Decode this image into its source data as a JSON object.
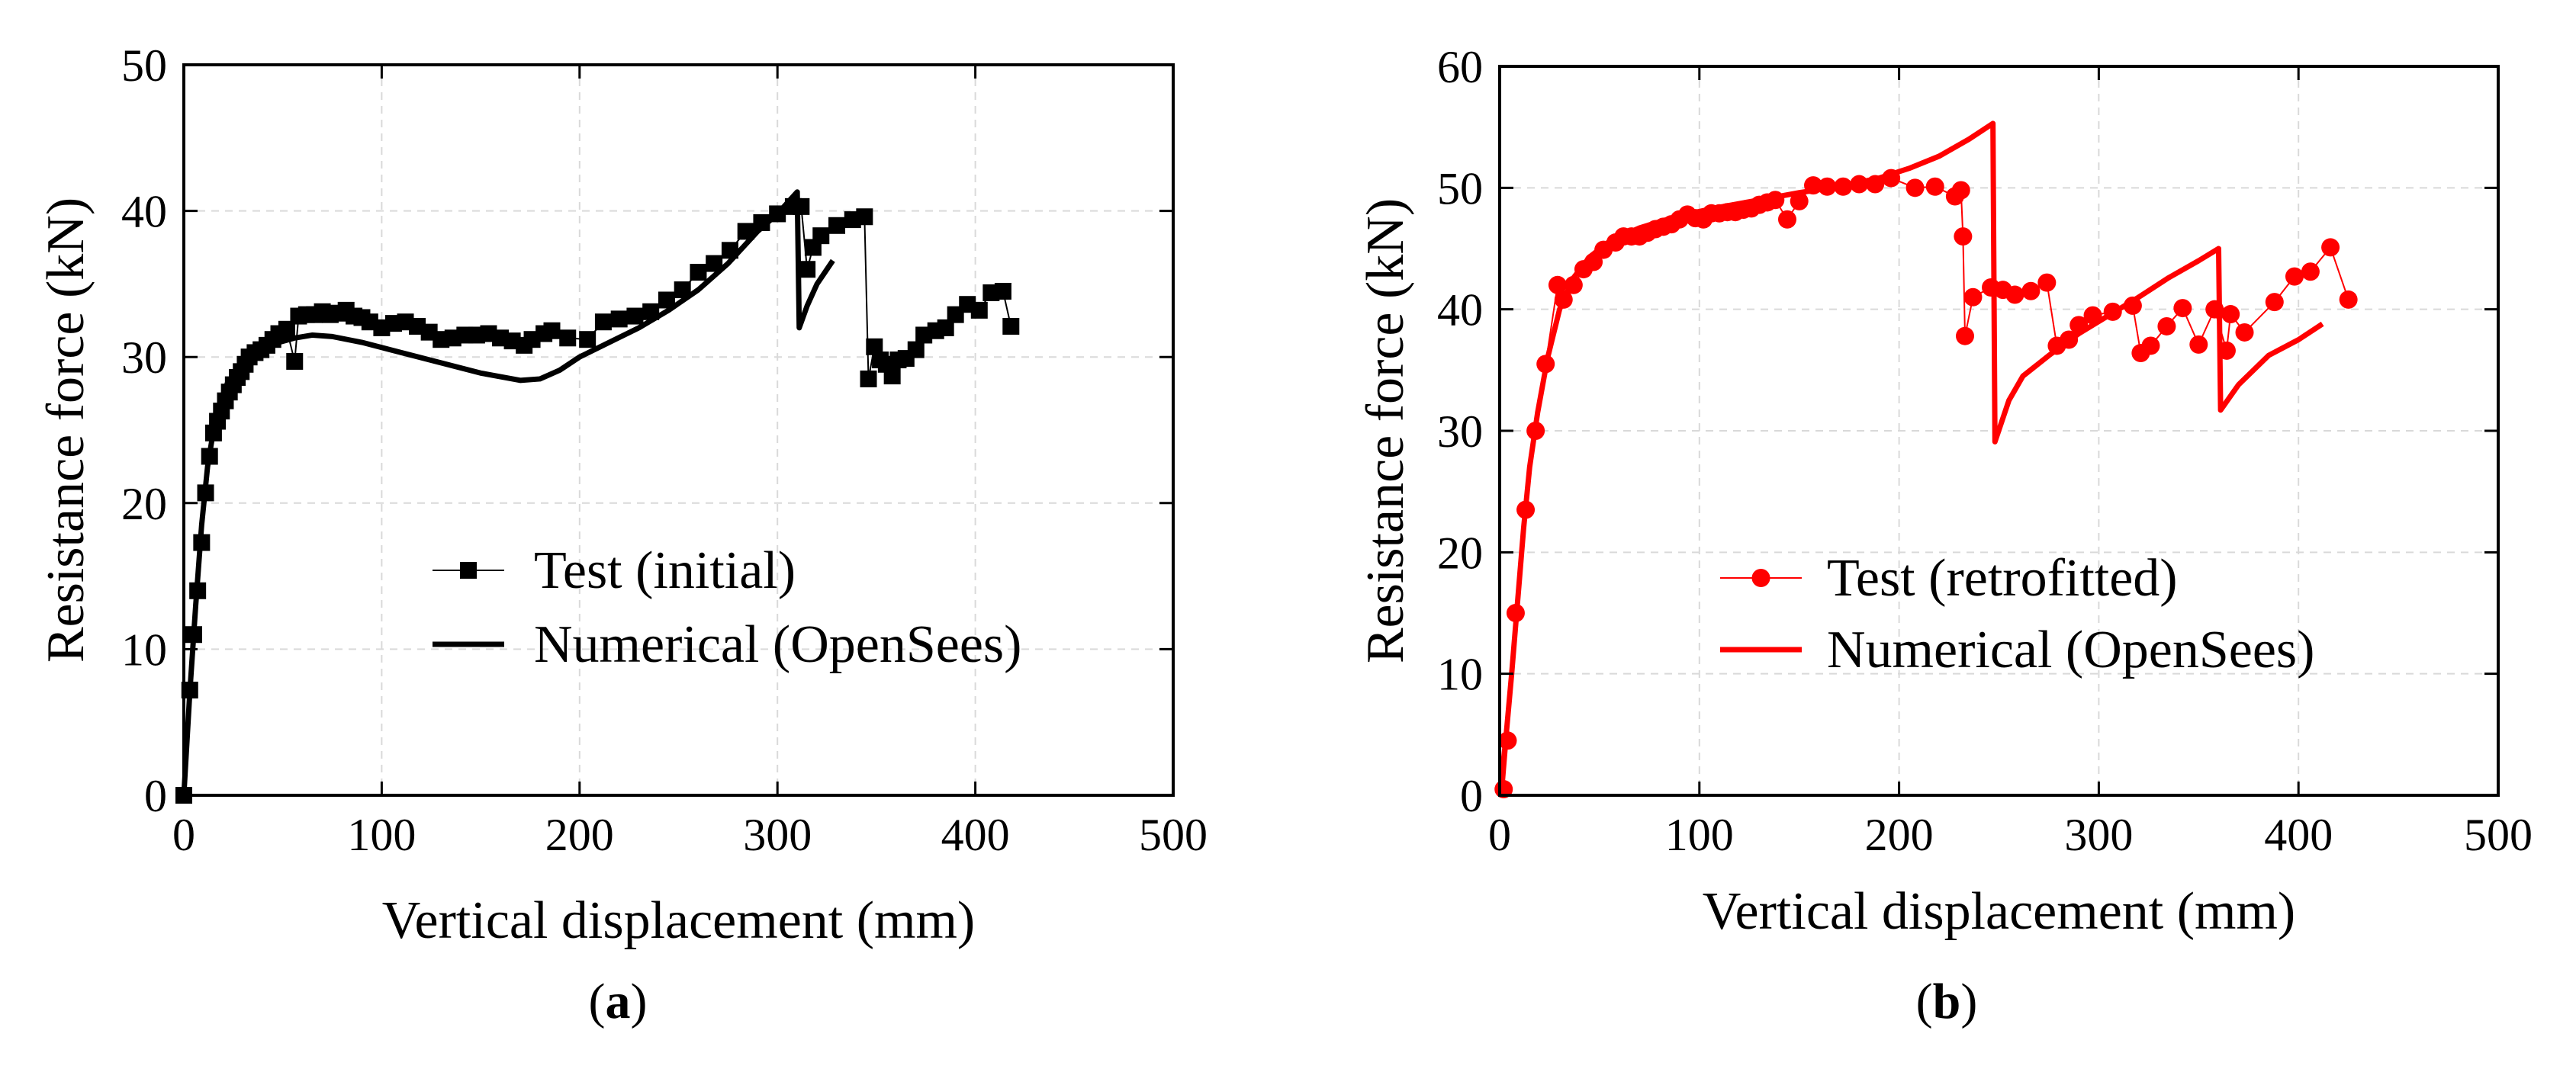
{
  "chart_data": [
    {
      "type": "line",
      "caption": {
        "open": "(",
        "letter": "a",
        "close": ")"
      },
      "xlabel": "Vertical displacement (mm)",
      "ylabel": "Resistance force (kN)",
      "xlim": [
        0,
        500
      ],
      "ylim": [
        0,
        50
      ],
      "xticks": [
        0,
        100,
        200,
        300,
        400,
        500
      ],
      "yticks": [
        0,
        10,
        20,
        30,
        40,
        50
      ],
      "grid": true,
      "legend_position": "center-right",
      "series": [
        {
          "name": "Test (initial)",
          "style": "line-markers",
          "marker": "square",
          "color": "#000000",
          "points": [
            [
              0,
              0
            ],
            [
              3,
              7.2
            ],
            [
              5,
              11
            ],
            [
              7,
              14
            ],
            [
              9,
              17.3
            ],
            [
              11,
              20.7
            ],
            [
              13,
              23.2
            ],
            [
              15,
              24.8
            ],
            [
              17,
              25.6
            ],
            [
              19,
              26.3
            ],
            [
              21,
              27
            ],
            [
              23,
              27.6
            ],
            [
              25,
              28.1
            ],
            [
              27,
              28.6
            ],
            [
              29,
              29
            ],
            [
              31,
              29.5
            ],
            [
              33,
              30
            ],
            [
              36,
              30.3
            ],
            [
              39,
              30.5
            ],
            [
              42,
              30.8
            ],
            [
              45,
              31.2
            ],
            [
              48,
              31.6
            ],
            [
              52,
              31.9
            ],
            [
              56,
              29.7
            ],
            [
              58,
              32.8
            ],
            [
              62,
              32.9
            ],
            [
              66,
              32.9
            ],
            [
              70,
              33.1
            ],
            [
              74,
              32.9
            ],
            [
              78,
              33
            ],
            [
              82,
              33.2
            ],
            [
              86,
              32.8
            ],
            [
              90,
              32.7
            ],
            [
              94,
              32.4
            ],
            [
              100,
              32
            ],
            [
              106,
              32.3
            ],
            [
              112,
              32.4
            ],
            [
              118,
              32.1
            ],
            [
              124,
              31.7
            ],
            [
              130,
              31.2
            ],
            [
              136,
              31.3
            ],
            [
              142,
              31.5
            ],
            [
              148,
              31.5
            ],
            [
              154,
              31.6
            ],
            [
              160,
              31.3
            ],
            [
              166,
              31.1
            ],
            [
              172,
              30.8
            ],
            [
              176,
              31.2
            ],
            [
              182,
              31.6
            ],
            [
              186,
              31.8
            ],
            [
              194,
              31.3
            ],
            [
              204,
              31.2
            ],
            [
              212,
              32.4
            ],
            [
              220,
              32.6
            ],
            [
              228,
              32.8
            ],
            [
              236,
              33.1
            ],
            [
              244,
              33.9
            ],
            [
              252,
              34.6
            ],
            [
              260,
              35.8
            ],
            [
              268,
              36.4
            ],
            [
              276,
              37.3
            ],
            [
              284,
              38.6
            ],
            [
              292,
              39.2
            ],
            [
              300,
              39.8
            ],
            [
              308,
              40.3
            ],
            [
              312,
              40.3
            ],
            [
              315,
              36
            ],
            [
              318,
              37.5
            ],
            [
              322,
              38.3
            ],
            [
              330,
              39
            ],
            [
              338,
              39.4
            ],
            [
              344,
              39.6
            ],
            [
              346,
              28.5
            ],
            [
              349,
              30.7
            ],
            [
              352,
              29.8
            ],
            [
              355,
              29.5
            ],
            [
              358,
              28.7
            ],
            [
              361,
              29.8
            ],
            [
              365,
              29.9
            ],
            [
              370,
              30.5
            ],
            [
              374,
              31.5
            ],
            [
              380,
              31.8
            ],
            [
              385,
              32
            ],
            [
              390,
              32.9
            ],
            [
              396,
              33.6
            ],
            [
              402,
              33.2
            ],
            [
              408,
              34.4
            ],
            [
              414,
              34.5
            ],
            [
              418,
              32.1
            ]
          ]
        },
        {
          "name": "Numerical (OpenSees)",
          "style": "line",
          "color": "#000000",
          "points": [
            [
              0,
              0
            ],
            [
              3,
              7
            ],
            [
              6,
              13
            ],
            [
              9,
              18.5
            ],
            [
              12,
              22.5
            ],
            [
              15,
              25
            ],
            [
              18,
              26.8
            ],
            [
              22,
              28.2
            ],
            [
              27,
              29.2
            ],
            [
              33,
              29.9
            ],
            [
              40,
              30.5
            ],
            [
              48,
              31
            ],
            [
              56,
              31.3
            ],
            [
              65,
              31.5
            ],
            [
              75,
              31.4
            ],
            [
              90,
              31
            ],
            [
              110,
              30.3
            ],
            [
              130,
              29.6
            ],
            [
              150,
              28.9
            ],
            [
              170,
              28.4
            ],
            [
              180,
              28.5
            ],
            [
              190,
              29.1
            ],
            [
              200,
              30
            ],
            [
              215,
              31
            ],
            [
              230,
              32
            ],
            [
              245,
              33.2
            ],
            [
              260,
              34.6
            ],
            [
              275,
              36.4
            ],
            [
              290,
              38.6
            ],
            [
              300,
              39.8
            ],
            [
              310,
              41.3
            ],
            [
              311,
              32
            ],
            [
              315,
              33.5
            ],
            [
              320,
              35
            ],
            [
              325,
              36
            ],
            [
              328,
              36.6
            ]
          ]
        }
      ]
    },
    {
      "type": "line",
      "caption": {
        "open": "(",
        "letter": "b",
        "close": ")"
      },
      "xlabel": "Vertical displacement (mm)",
      "ylabel": "Resistance force (kN)",
      "xlim": [
        0,
        500
      ],
      "ylim": [
        0,
        60
      ],
      "xticks": [
        0,
        100,
        200,
        300,
        400,
        500
      ],
      "yticks": [
        0,
        10,
        20,
        30,
        40,
        50,
        60
      ],
      "grid": true,
      "legend_position": "center-right",
      "series": [
        {
          "name": "Test (retrofitted)",
          "style": "line-markers",
          "marker": "circle",
          "color": "#ff0000",
          "points": [
            [
              2,
              0.5
            ],
            [
              4,
              4.5
            ],
            [
              8,
              15
            ],
            [
              13,
              23.5
            ],
            [
              18,
              30
            ],
            [
              23,
              35.5
            ],
            [
              29,
              42
            ],
            [
              32,
              40.8
            ],
            [
              37,
              42
            ],
            [
              42,
              43.3
            ],
            [
              47,
              43.9
            ],
            [
              52,
              44.9
            ],
            [
              58,
              45.5
            ],
            [
              62,
              46
            ],
            [
              66,
              46
            ],
            [
              70,
              46
            ],
            [
              74,
              46.3
            ],
            [
              78,
              46.6
            ],
            [
              82,
              46.8
            ],
            [
              86,
              47
            ],
            [
              90,
              47.4
            ],
            [
              94,
              47.8
            ],
            [
              98,
              47.5
            ],
            [
              102,
              47.4
            ],
            [
              106,
              47.9
            ],
            [
              110,
              47.9
            ],
            [
              114,
              48
            ],
            [
              118,
              48
            ],
            [
              122,
              48.2
            ],
            [
              126,
              48.3
            ],
            [
              130,
              48.6
            ],
            [
              134,
              48.8
            ],
            [
              138,
              49
            ],
            [
              144,
              47.4
            ],
            [
              150,
              48.9
            ],
            [
              157,
              50.2
            ],
            [
              164,
              50.1
            ],
            [
              172,
              50.1
            ],
            [
              180,
              50.3
            ],
            [
              188,
              50.3
            ],
            [
              196,
              50.8
            ],
            [
              208,
              50
            ],
            [
              218,
              50.1
            ],
            [
              228,
              49.3
            ],
            [
              231,
              49.8
            ],
            [
              232,
              46
            ],
            [
              233,
              37.8
            ],
            [
              237,
              41
            ],
            [
              246,
              41.8
            ],
            [
              252,
              41.6
            ],
            [
              258,
              41.2
            ],
            [
              266,
              41.5
            ],
            [
              274,
              42.2
            ],
            [
              279,
              37
            ],
            [
              285,
              37.5
            ],
            [
              290,
              38.7
            ],
            [
              297,
              39.5
            ],
            [
              307,
              39.8
            ],
            [
              317,
              40.3
            ],
            [
              321,
              36.4
            ],
            [
              326,
              37
            ],
            [
              334,
              38.6
            ],
            [
              342,
              40.1
            ],
            [
              350,
              37.1
            ],
            [
              358,
              40
            ],
            [
              364,
              36.6
            ],
            [
              366,
              39.6
            ],
            [
              373,
              38.1
            ],
            [
              388,
              40.6
            ],
            [
              398,
              42.7
            ],
            [
              406,
              43.1
            ],
            [
              416,
              45.1
            ],
            [
              425,
              40.8
            ]
          ]
        },
        {
          "name": "Numerical (OpenSees)",
          "style": "line",
          "color": "#ff0000",
          "points": [
            [
              0,
              0
            ],
            [
              3,
              4.5
            ],
            [
              6,
              10
            ],
            [
              9,
              16
            ],
            [
              12,
              22
            ],
            [
              15,
              27
            ],
            [
              19,
              31.5
            ],
            [
              24,
              36
            ],
            [
              30,
              40
            ],
            [
              37,
              42.6
            ],
            [
              45,
              44.3
            ],
            [
              55,
              45.6
            ],
            [
              70,
              46.7
            ],
            [
              90,
              47.7
            ],
            [
              110,
              48.4
            ],
            [
              130,
              49
            ],
            [
              150,
              49.6
            ],
            [
              170,
              50.1
            ],
            [
              190,
              50.8
            ],
            [
              205,
              51.6
            ],
            [
              220,
              52.6
            ],
            [
              235,
              54
            ],
            [
              247,
              55.3
            ],
            [
              248,
              29.1
            ],
            [
              255,
              32.5
            ],
            [
              262,
              34.5
            ],
            [
              275,
              36.2
            ],
            [
              290,
              38
            ],
            [
              305,
              39.5
            ],
            [
              320,
              41
            ],
            [
              335,
              42.6
            ],
            [
              350,
              44
            ],
            [
              360,
              45
            ],
            [
              361,
              31.7
            ],
            [
              370,
              33.8
            ],
            [
              385,
              36.2
            ],
            [
              400,
              37.5
            ],
            [
              412,
              38.8
            ]
          ]
        }
      ]
    }
  ]
}
